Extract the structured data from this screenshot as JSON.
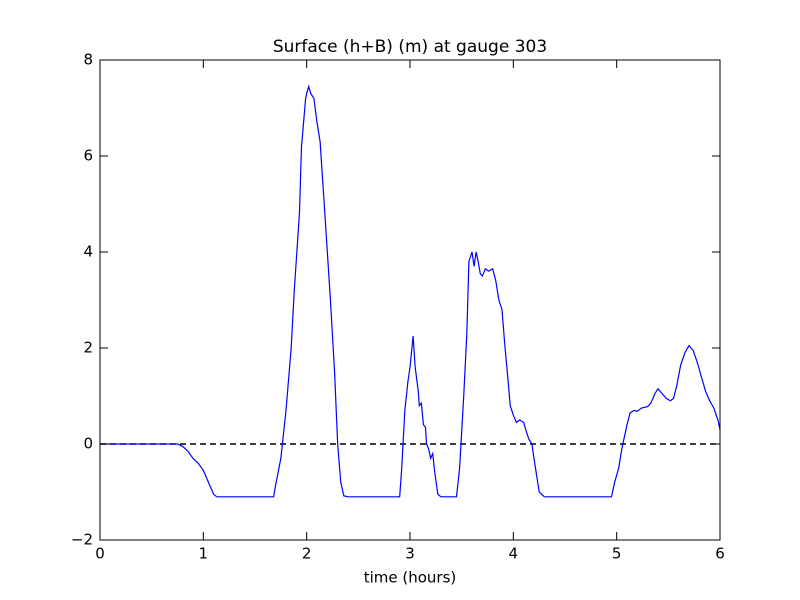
{
  "chart_data": {
    "type": "line",
    "title": "Surface (h+B) (m) at gauge 303",
    "x_label": "time (hours)",
    "xlim": [
      0,
      6
    ],
    "xticks": [
      0,
      1,
      2,
      3,
      4,
      5,
      6
    ],
    "ylim": [
      -2,
      8
    ],
    "yticks": [
      {
        "value": -2,
        "label": "−2"
      },
      0,
      2,
      4,
      6,
      8
    ],
    "grid": false,
    "hlines": [
      {
        "y": 0,
        "color": "#000000",
        "dashed": true
      }
    ],
    "series": [
      {
        "color": "#0000ff",
        "x": [
          0,
          0.7,
          0.75,
          0.8,
          0.85,
          0.9,
          0.95,
          1.0,
          1.05,
          1.1,
          1.13,
          1.2,
          1.68,
          1.7,
          1.75,
          1.8,
          1.85,
          1.88,
          1.93,
          1.95,
          1.97,
          1.99,
          2.0,
          2.02,
          2.04,
          2.07,
          2.1,
          2.13,
          2.17,
          2.2,
          2.23,
          2.27,
          2.3,
          2.33,
          2.36,
          2.4,
          2.9,
          2.92,
          2.95,
          2.98,
          3.0,
          3.03,
          3.05,
          3.08,
          3.09,
          3.11,
          3.13,
          3.15,
          3.16,
          3.18,
          3.2,
          3.22,
          3.24,
          3.27,
          3.3,
          3.45,
          3.48,
          3.52,
          3.55,
          3.57,
          3.6,
          3.62,
          3.64,
          3.66,
          3.68,
          3.7,
          3.73,
          3.76,
          3.8,
          3.83,
          3.86,
          3.89,
          3.92,
          3.95,
          3.97,
          4.0,
          4.03,
          4.06,
          4.1,
          4.12,
          4.15,
          4.18,
          4.2,
          4.25,
          4.3,
          4.95,
          4.98,
          5.02,
          5.05,
          5.08,
          5.1,
          5.13,
          5.17,
          5.2,
          5.24,
          5.3,
          5.33,
          5.37,
          5.4,
          5.44,
          5.48,
          5.52,
          5.55,
          5.58,
          5.62,
          5.66,
          5.7,
          5.74,
          5.78,
          5.82,
          5.86,
          5.9,
          5.94,
          5.98,
          6.0
        ],
        "values": [
          0,
          0,
          0,
          -0.05,
          -0.15,
          -0.3,
          -0.4,
          -0.55,
          -0.8,
          -1.05,
          -1.1,
          -1.1,
          -1.1,
          -0.85,
          -0.3,
          0.7,
          2.0,
          3.2,
          4.8,
          6.2,
          6.7,
          7.2,
          7.3,
          7.45,
          7.3,
          7.2,
          6.7,
          6.3,
          5.0,
          4.0,
          3.0,
          1.5,
          0.0,
          -0.8,
          -1.08,
          -1.1,
          -1.1,
          -0.5,
          0.7,
          1.3,
          1.6,
          2.25,
          1.6,
          1.1,
          0.8,
          0.85,
          0.4,
          0.35,
          0.0,
          -0.1,
          -0.3,
          -0.2,
          -0.6,
          -1.05,
          -1.1,
          -1.1,
          -0.5,
          1.0,
          2.3,
          3.8,
          4.0,
          3.7,
          4.0,
          3.8,
          3.55,
          3.5,
          3.65,
          3.6,
          3.65,
          3.4,
          3.0,
          2.8,
          2.0,
          1.3,
          0.8,
          0.6,
          0.45,
          0.5,
          0.45,
          0.3,
          0.1,
          0.0,
          -0.3,
          -1.0,
          -1.1,
          -1.1,
          -0.8,
          -0.5,
          -0.1,
          0.2,
          0.4,
          0.65,
          0.7,
          0.68,
          0.75,
          0.78,
          0.85,
          1.05,
          1.15,
          1.05,
          0.95,
          0.9,
          0.95,
          1.2,
          1.65,
          1.9,
          2.05,
          1.95,
          1.7,
          1.4,
          1.1,
          0.9,
          0.75,
          0.5,
          0.3
        ]
      }
    ]
  }
}
